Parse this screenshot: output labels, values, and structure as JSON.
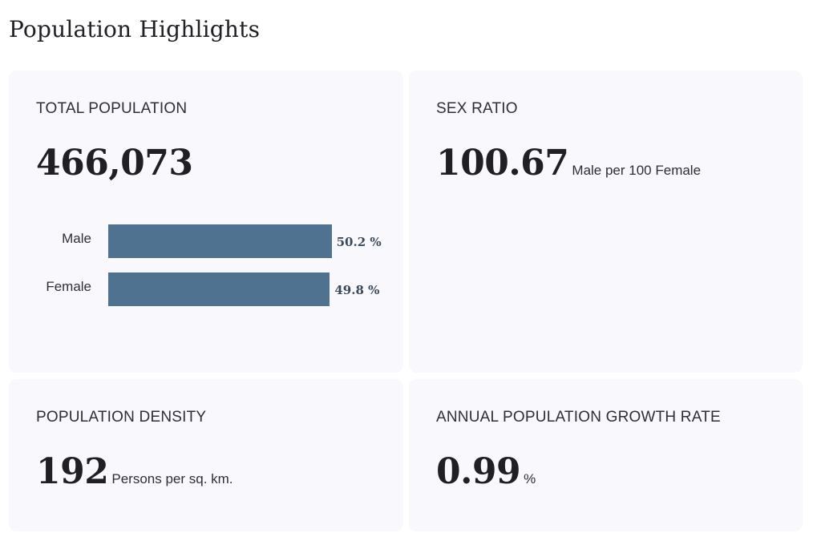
{
  "page": {
    "title": "Population Highlights"
  },
  "total_population": {
    "label": "TOTAL POPULATION",
    "value": "466,073",
    "gender_split": [
      {
        "label": "Male",
        "percent": 50.2,
        "display": "50.2 %"
      },
      {
        "label": "Female",
        "percent": 49.8,
        "display": "49.8 %"
      }
    ]
  },
  "sex_ratio": {
    "label": "SEX RATIO",
    "value": "100.67",
    "unit": "Male per 100 Female"
  },
  "population_density": {
    "label": "POPULATION DENSITY",
    "value": "192",
    "unit": "Persons per sq. km."
  },
  "growth_rate": {
    "label": "ANNUAL POPULATION GROWTH RATE",
    "value": "0.99",
    "unit": "%"
  },
  "colors": {
    "bar": "#4f7290",
    "card_background": "#f8f8fd"
  }
}
